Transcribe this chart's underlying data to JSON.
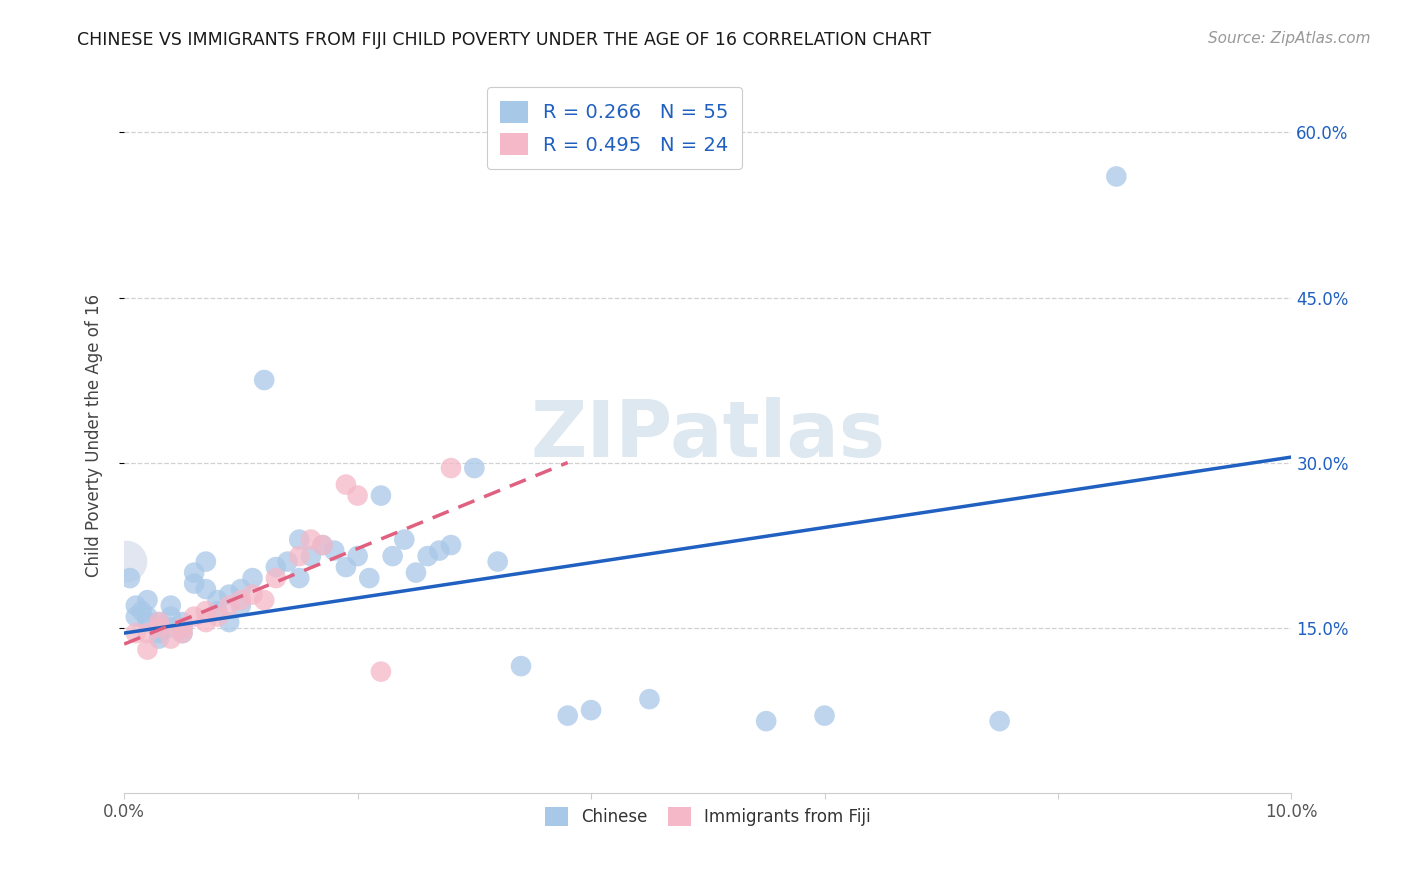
{
  "title": "CHINESE VS IMMIGRANTS FROM FIJI CHILD POVERTY UNDER THE AGE OF 16 CORRELATION CHART",
  "source": "Source: ZipAtlas.com",
  "ylabel": "Child Poverty Under the Age of 16",
  "xlim": [
    0.0,
    0.1
  ],
  "ylim": [
    0.0,
    0.65
  ],
  "chinese_color": "#a8c8e8",
  "fiji_color": "#f4b8c8",
  "chinese_line_color": "#2060c0",
  "fiji_line_color": "#e06080",
  "text_color": "#2060c0",
  "watermark_color": "#dde8f0",
  "chinese_R": 0.266,
  "chinese_N": 55,
  "fiji_R": 0.495,
  "fiji_N": 24,
  "chinese_line_x0": 0.0,
  "chinese_line_x1": 0.1,
  "chinese_line_y0": 0.145,
  "chinese_line_y1": 0.305,
  "fiji_line_x0": 0.0,
  "fiji_line_x1": 0.038,
  "fiji_line_y0": 0.135,
  "fiji_line_y1": 0.3,
  "chinese_x": [
    0.0005,
    0.001,
    0.001,
    0.0015,
    0.002,
    0.002,
    0.002,
    0.003,
    0.003,
    0.003,
    0.004,
    0.004,
    0.004,
    0.005,
    0.005,
    0.005,
    0.006,
    0.006,
    0.007,
    0.007,
    0.008,
    0.008,
    0.009,
    0.009,
    0.01,
    0.01,
    0.011,
    0.012,
    0.013,
    0.014,
    0.015,
    0.015,
    0.016,
    0.017,
    0.018,
    0.019,
    0.02,
    0.021,
    0.022,
    0.023,
    0.024,
    0.025,
    0.026,
    0.027,
    0.028,
    0.03,
    0.032,
    0.034,
    0.038,
    0.04,
    0.045,
    0.055,
    0.06,
    0.075,
    0.085
  ],
  "chinese_y": [
    0.195,
    0.17,
    0.16,
    0.165,
    0.16,
    0.155,
    0.175,
    0.145,
    0.155,
    0.14,
    0.16,
    0.17,
    0.15,
    0.15,
    0.155,
    0.145,
    0.19,
    0.2,
    0.21,
    0.185,
    0.175,
    0.165,
    0.18,
    0.155,
    0.185,
    0.17,
    0.195,
    0.375,
    0.205,
    0.21,
    0.23,
    0.195,
    0.215,
    0.225,
    0.22,
    0.205,
    0.215,
    0.195,
    0.27,
    0.215,
    0.23,
    0.2,
    0.215,
    0.22,
    0.225,
    0.295,
    0.21,
    0.115,
    0.07,
    0.075,
    0.085,
    0.065,
    0.07,
    0.065,
    0.56
  ],
  "fiji_x": [
    0.001,
    0.002,
    0.002,
    0.003,
    0.003,
    0.004,
    0.005,
    0.005,
    0.006,
    0.007,
    0.007,
    0.008,
    0.009,
    0.01,
    0.011,
    0.012,
    0.013,
    0.015,
    0.016,
    0.017,
    0.019,
    0.02,
    0.022,
    0.028
  ],
  "fiji_y": [
    0.145,
    0.13,
    0.145,
    0.15,
    0.155,
    0.14,
    0.15,
    0.145,
    0.16,
    0.155,
    0.165,
    0.16,
    0.17,
    0.175,
    0.18,
    0.175,
    0.195,
    0.215,
    0.23,
    0.225,
    0.28,
    0.27,
    0.11,
    0.295
  ]
}
